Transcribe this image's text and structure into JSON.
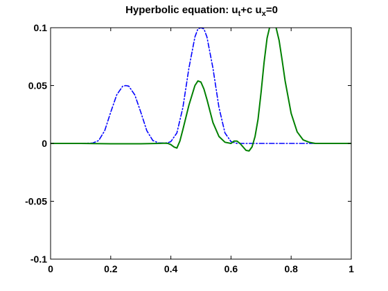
{
  "chart_data": {
    "type": "line",
    "title": {
      "parts": [
        {
          "text": "Hyperbolic equation: u",
          "sub": false
        },
        {
          "text": "t",
          "sub": true
        },
        {
          "text": "+c u",
          "sub": false
        },
        {
          "text": "x",
          "sub": true
        },
        {
          "text": "=0",
          "sub": false
        }
      ]
    },
    "xlabel": "",
    "ylabel": "",
    "xlim": [
      0,
      1
    ],
    "ylim": [
      -0.1,
      0.1
    ],
    "x_ticks": [
      0,
      0.2,
      0.4,
      0.6,
      0.8,
      1
    ],
    "x_tick_labels": [
      "0",
      "0.2",
      "0.4",
      "0.6",
      "0.8",
      "1"
    ],
    "y_ticks": [
      -0.1,
      -0.05,
      0,
      0.05,
      0.1
    ],
    "y_tick_labels": [
      "-0.1",
      "-0.05",
      "0",
      "0.05",
      "0.1"
    ],
    "grid": false,
    "series": [
      {
        "style": "dash-dot",
        "color": "#0000ff",
        "x": [
          0,
          0.1,
          0.14,
          0.16,
          0.18,
          0.2,
          0.22,
          0.24,
          0.25,
          0.26,
          0.28,
          0.3,
          0.32,
          0.34,
          0.36,
          0.38,
          0.39,
          0.4,
          0.42,
          0.44,
          0.46,
          0.48,
          0.49,
          0.5,
          0.51,
          0.52,
          0.54,
          0.56,
          0.58,
          0.6,
          0.62,
          1
        ],
        "y": [
          0,
          0,
          0.0003,
          0.0025,
          0.011,
          0.027,
          0.042,
          0.0495,
          0.05,
          0.0495,
          0.042,
          0.027,
          0.011,
          0.0025,
          0.0004,
          0.0003,
          0.0006,
          0.0016,
          0.009,
          0.031,
          0.065,
          0.092,
          0.099,
          0.1,
          0.099,
          0.092,
          0.065,
          0.031,
          0.009,
          0.0016,
          0,
          0
        ]
      },
      {
        "style": "solid",
        "color": "#008000",
        "x": [
          0,
          0.1,
          0.2,
          0.3,
          0.36,
          0.38,
          0.39,
          0.4,
          0.41,
          0.42,
          0.43,
          0.44,
          0.46,
          0.48,
          0.49,
          0.5,
          0.51,
          0.52,
          0.54,
          0.56,
          0.58,
          0.6,
          0.61,
          0.62,
          0.63,
          0.64,
          0.65,
          0.66,
          0.67,
          0.68,
          0.69,
          0.7,
          0.71,
          0.72,
          0.73,
          0.74,
          0.75,
          0.76,
          0.77,
          0.78,
          0.8,
          0.82,
          0.84,
          0.86,
          0.88,
          0.9,
          1
        ],
        "y": [
          0,
          0,
          -0.0003,
          -0.0003,
          0,
          0.0002,
          0,
          -0.001,
          -0.003,
          -0.004,
          0.002,
          0.012,
          0.033,
          0.05,
          0.054,
          0.053,
          0.047,
          0.038,
          0.018,
          0.006,
          0.001,
          0,
          0.002,
          0.002,
          0,
          -0.003,
          -0.006,
          -0.0065,
          -0.003,
          0.006,
          0.021,
          0.044,
          0.07,
          0.091,
          0.102,
          0.105,
          0.1,
          0.089,
          0.072,
          0.054,
          0.026,
          0.01,
          0.003,
          0.001,
          0,
          0,
          0
        ]
      }
    ]
  }
}
